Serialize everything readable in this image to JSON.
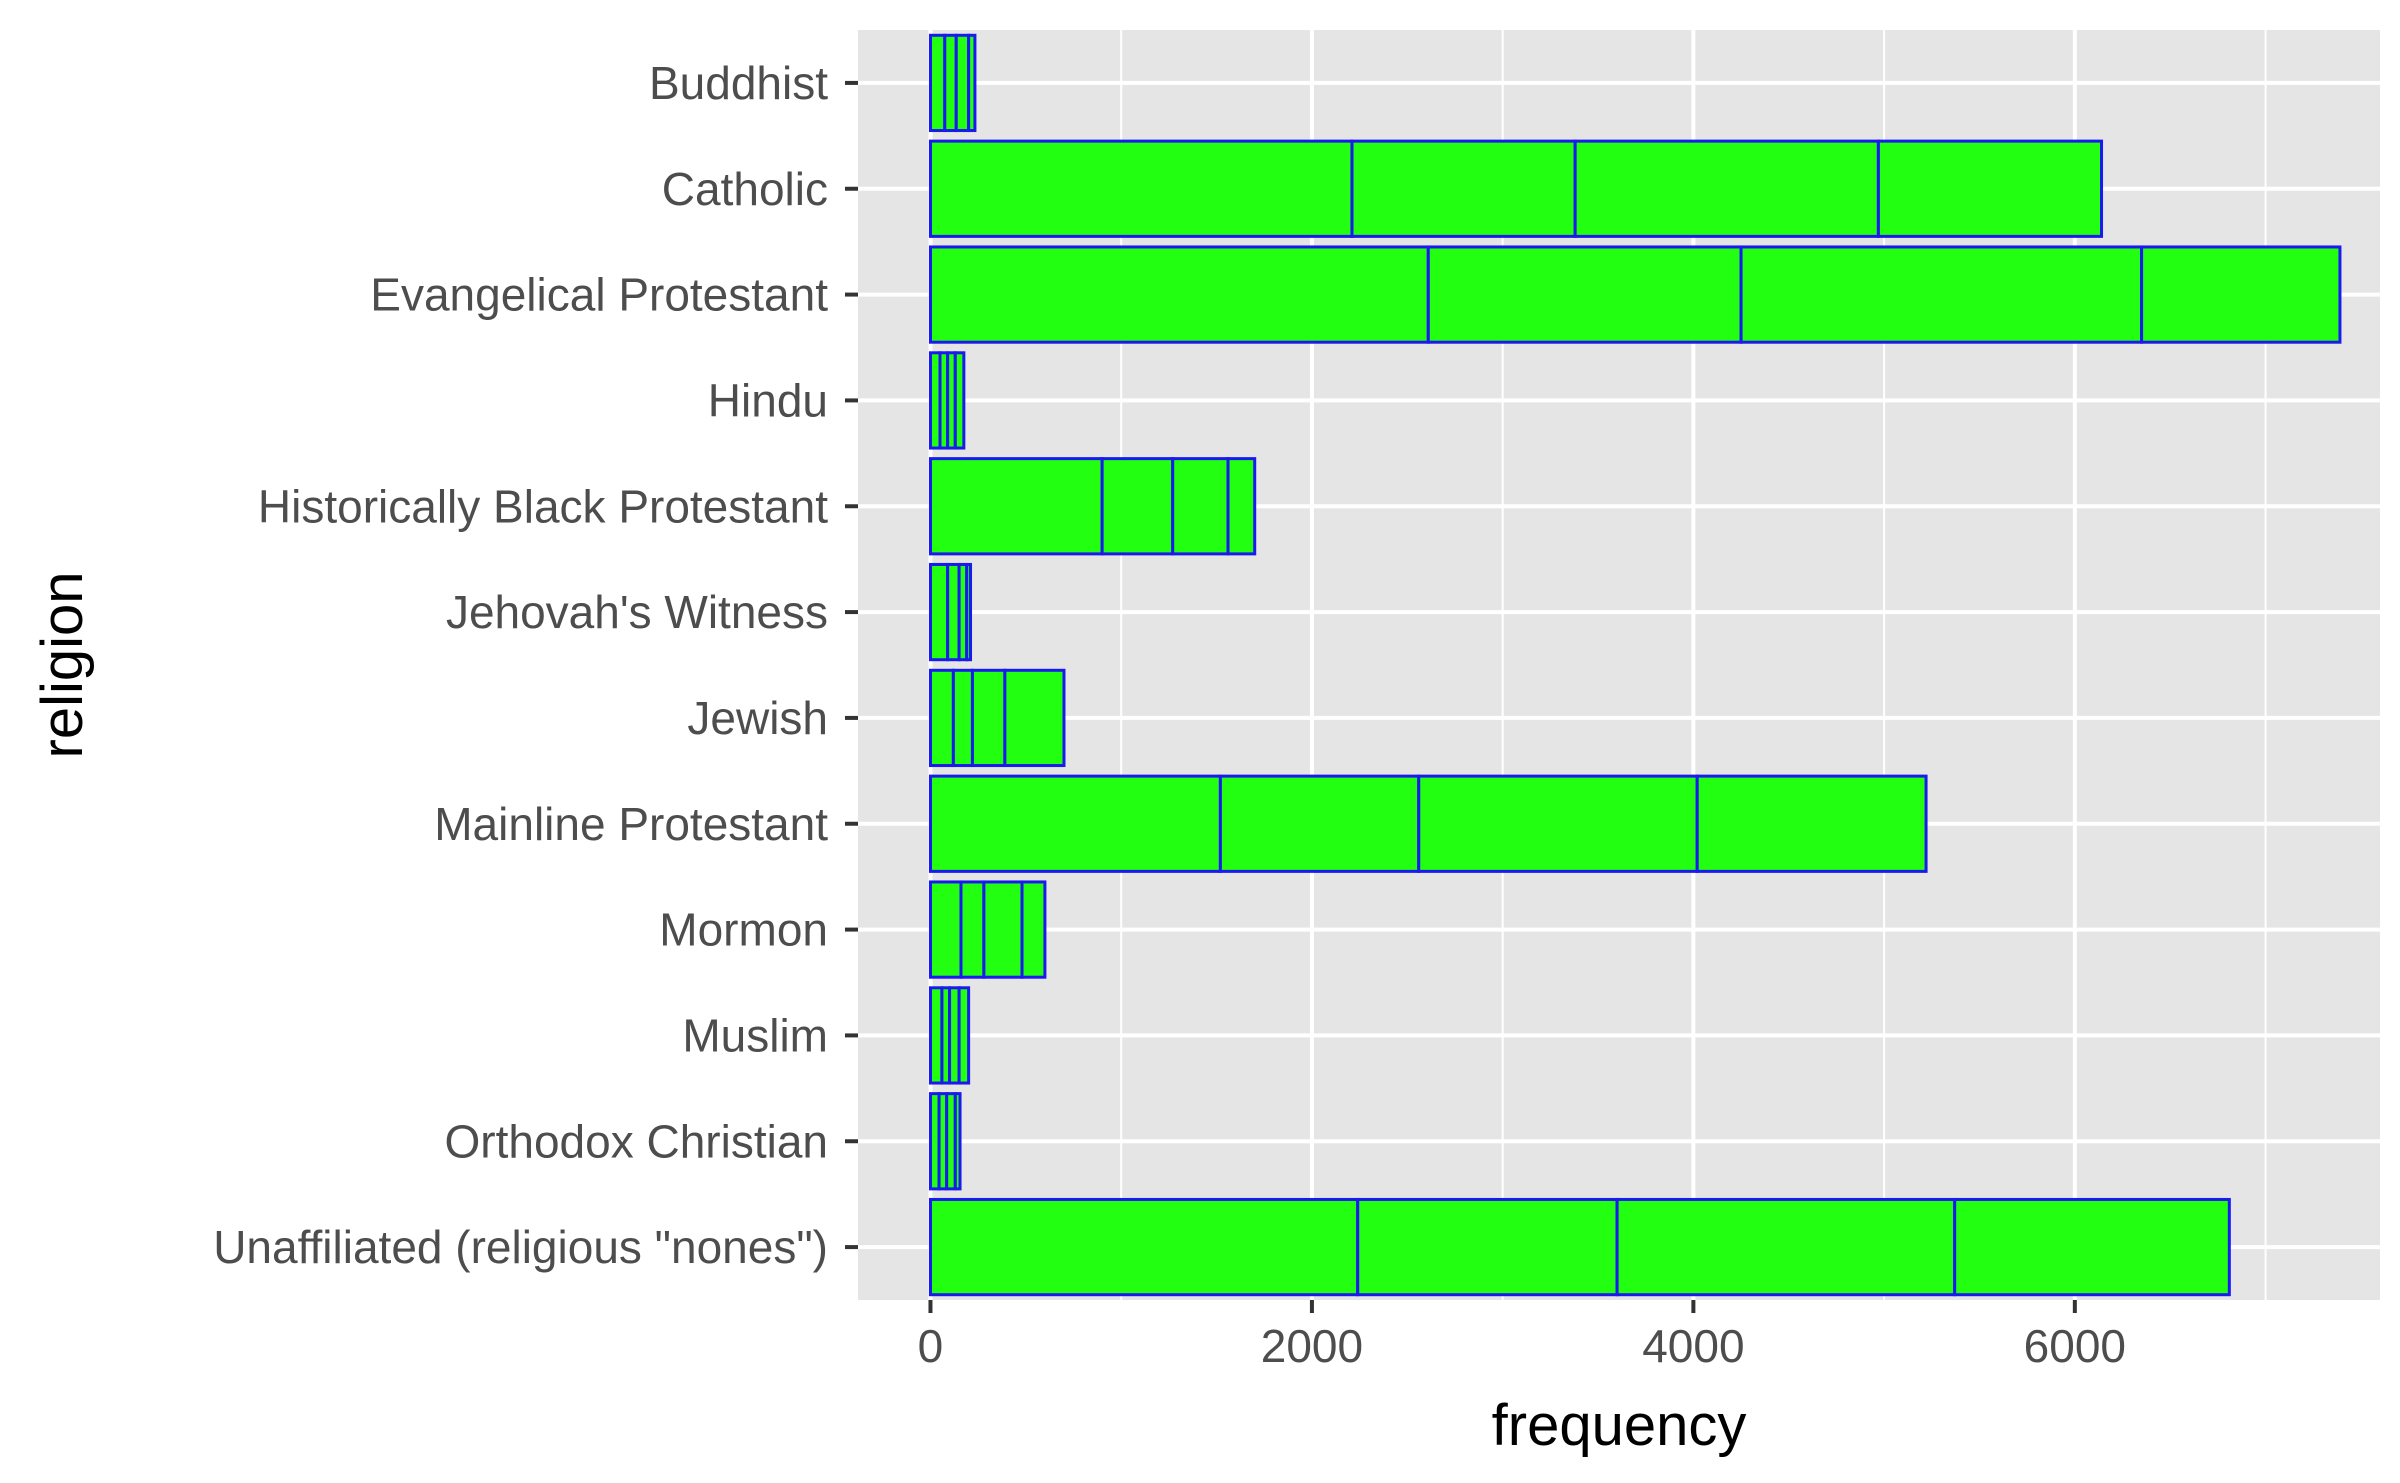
{
  "chart_data": {
    "type": "bar",
    "orientation": "horizontal",
    "stacked": true,
    "xlabel": "frequency",
    "ylabel": "religion",
    "xlim": [
      -380,
      7600
    ],
    "x_ticks": [
      0,
      2000,
      4000,
      6000
    ],
    "grid": true,
    "legend": "none",
    "colors": {
      "fill": "#22ff11",
      "stroke": "#1a1aee",
      "panel": "#e5e5e5",
      "grid": "#ffffff"
    },
    "categories": [
      "Buddhist",
      "Catholic",
      "Evangelical Protestant",
      "Hindu",
      "Historically Black Protestant",
      "Jehovah's Witness",
      "Jewish",
      "Mainline Protestant",
      "Mormon",
      "Muslim",
      "Orthodox Christian",
      "Unaffiliated (religious \"nones\")"
    ],
    "segments": [
      [
        75,
        60,
        65,
        33
      ],
      [
        2210,
        1170,
        1590,
        1170
      ],
      [
        2610,
        1640,
        2100,
        1040
      ],
      [
        50,
        40,
        40,
        45
      ],
      [
        900,
        370,
        290,
        140
      ],
      [
        90,
        60,
        40,
        20
      ],
      [
        120,
        100,
        170,
        310
      ],
      [
        1520,
        1040,
        1460,
        1200
      ],
      [
        160,
        120,
        200,
        120
      ],
      [
        60,
        40,
        50,
        50
      ],
      [
        45,
        40,
        45,
        25
      ],
      [
        2240,
        1360,
        1770,
        1440
      ]
    ]
  }
}
